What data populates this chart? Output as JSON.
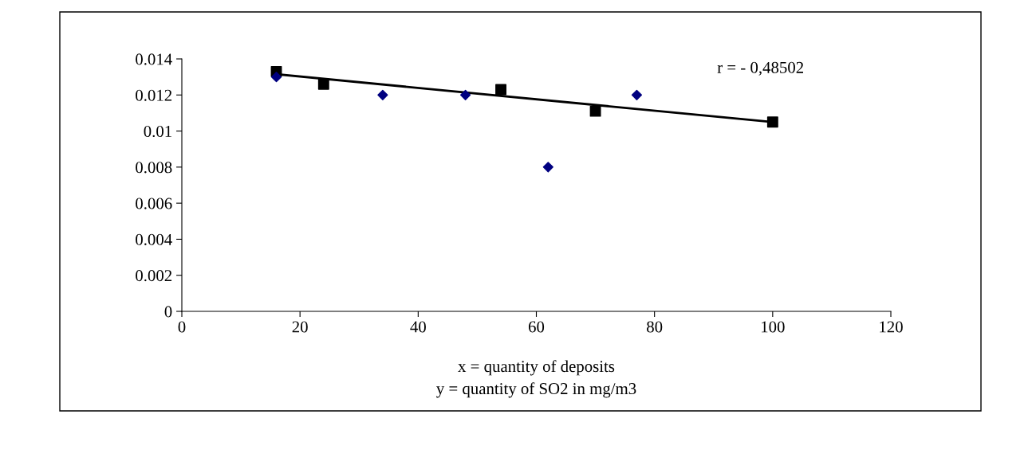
{
  "chart_data": {
    "type": "scatter",
    "xlabel": "x = quantity of deposits\ny = quantity of SO2 in mg/m3",
    "series": [
      {
        "marker": "diamond",
        "color": "#000080",
        "x": [
          16,
          34,
          48,
          62,
          77
        ],
        "values": [
          0.013,
          0.012,
          0.012,
          0.008,
          0.012
        ]
      },
      {
        "marker": "square",
        "color": "#000000",
        "x": [
          16,
          24,
          54,
          70,
          100
        ],
        "values": [
          0.0133,
          0.0126,
          0.0123,
          0.0111,
          0.0105
        ]
      },
      {
        "type": "line",
        "marker": "none",
        "color": "#000000",
        "x": [
          16,
          100
        ],
        "values": [
          0.01315,
          0.0105
        ]
      }
    ],
    "annotations": [
      "r = - 0,48502"
    ],
    "xlim": [
      0,
      120
    ],
    "xticks": [
      0,
      20,
      40,
      60,
      80,
      100,
      120
    ],
    "ylim": [
      0,
      0.014
    ],
    "yticks": [
      {
        "value": 0,
        "label": "0"
      },
      {
        "value": 0.002,
        "label": "0.002"
      },
      {
        "value": 0.004,
        "label": "0.004"
      },
      {
        "value": 0.006,
        "label": "0.006"
      },
      {
        "value": 0.008,
        "label": "0.008"
      },
      {
        "value": 0.01,
        "label": "0.01"
      },
      {
        "value": 0.012,
        "label": "0.012"
      },
      {
        "value": 0.014,
        "label": "0.014"
      }
    ],
    "grid": false,
    "legend": false
  }
}
